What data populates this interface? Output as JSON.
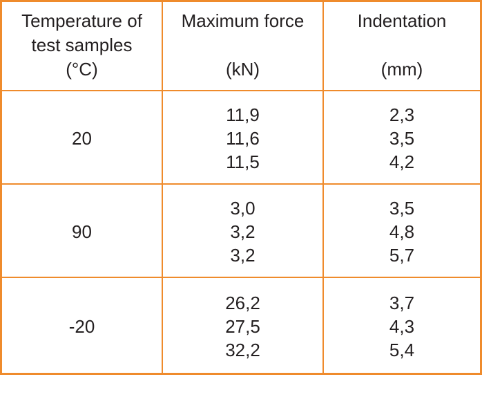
{
  "table": {
    "headers": [
      [
        "Temperature of",
        "test samples",
        "(°C)"
      ],
      [
        "Maximum force",
        "",
        "(kN)"
      ],
      [
        "Indentation",
        "",
        "(mm)"
      ]
    ],
    "rows": [
      {
        "temperature": "20",
        "max_force": [
          "11,9",
          "11,6",
          "11,5"
        ],
        "indentation": [
          "2,3",
          "3,5",
          "4,2"
        ]
      },
      {
        "temperature": "90",
        "max_force": [
          "3,0",
          "3,2",
          "3,2"
        ],
        "indentation": [
          "3,5",
          "4,8",
          "5,7"
        ]
      },
      {
        "temperature": "-20",
        "max_force": [
          "26,2",
          "27,5",
          "32,2"
        ],
        "indentation": [
          "3,7",
          "4,3",
          "5,4"
        ]
      }
    ],
    "border_color": "#ef8b2c",
    "text_color": "#231f20"
  }
}
